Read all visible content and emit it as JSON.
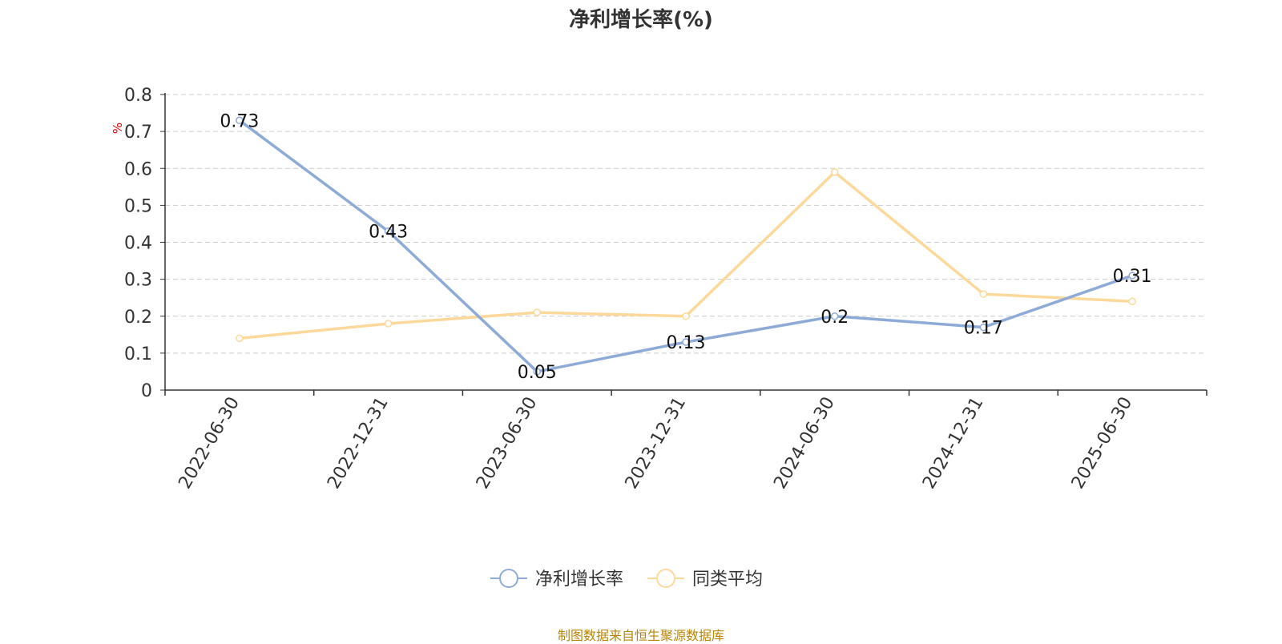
{
  "chart_data": {
    "type": "line",
    "title": "净利增长率(%)",
    "ylabel": "%",
    "categories": [
      "2022-06-30",
      "2022-12-31",
      "2023-06-30",
      "2023-12-31",
      "2024-06-30",
      "2024-12-31",
      "2025-06-30"
    ],
    "ylim": [
      0,
      0.8
    ],
    "yticks": [
      "0",
      "0.1",
      "0.2",
      "0.3",
      "0.4",
      "0.5",
      "0.6",
      "0.7",
      "0.8"
    ],
    "grid": true,
    "legend_position": "bottom",
    "series": [
      {
        "name": "净利增长率",
        "values": [
          0.73,
          0.43,
          0.05,
          0.13,
          0.2,
          0.17,
          0.31
        ],
        "data_labels": [
          "0.73",
          "0.43",
          "0.05",
          "0.13",
          "0.2",
          "0.17",
          "0.31"
        ],
        "color": "#8eabd8"
      },
      {
        "name": "同类平均",
        "values": [
          0.14,
          0.18,
          0.21,
          0.2,
          0.59,
          0.26,
          0.24
        ],
        "color": "#fcd99a"
      }
    ]
  },
  "footer": "制图数据来自恒生聚源数据库",
  "colors": {
    "ylabel": "#e00000",
    "axis": "#333333",
    "grid": "#cccccc",
    "footer": "#b8860b"
  }
}
